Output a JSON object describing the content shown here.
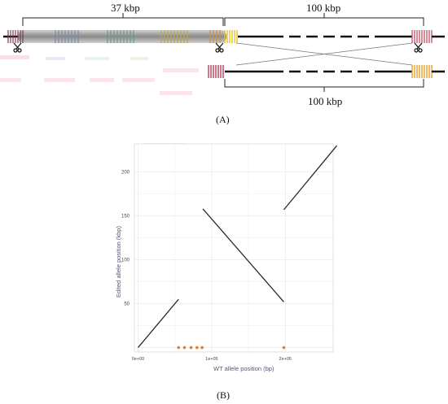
{
  "panel_a": {
    "left_span_label": "37 kbp",
    "right_span_label": "100 kbp",
    "bottom_span_label": "100 kbp",
    "panel_label": "(A)"
  },
  "panel_b": {
    "panel_label": "(B)"
  },
  "colors": {
    "line": "#2b2b2b",
    "marker": "#d9823b",
    "grid": "#e6e6e6",
    "axis_text": "#555577"
  },
  "chart_data": {
    "type": "line",
    "xlabel": "WT allele position (bp)",
    "ylabel": "Edited allele position (kbp)",
    "xlim": [
      -5000,
      265000
    ],
    "ylim": [
      -5,
      232
    ],
    "xticks": [
      0,
      100000,
      200000
    ],
    "xtick_labels": [
      "0e+00",
      "1e+05",
      "2e+05"
    ],
    "yticks": [
      50,
      100,
      150,
      200
    ],
    "ytick_labels": [
      "50",
      "100",
      "150",
      "200"
    ],
    "grid": true,
    "series": [
      {
        "x": [
          0,
          55000
        ],
        "y": [
          0,
          55
        ]
      },
      {
        "x": [
          88000,
          198000
        ],
        "y": [
          158,
          52
        ]
      },
      {
        "x": [
          198000,
          270000
        ],
        "y": [
          157,
          230
        ]
      }
    ],
    "markers": {
      "x": [
        55000,
        63000,
        72000,
        80000,
        87000,
        198000
      ],
      "y": [
        0,
        0,
        0,
        0,
        0,
        0
      ]
    }
  }
}
